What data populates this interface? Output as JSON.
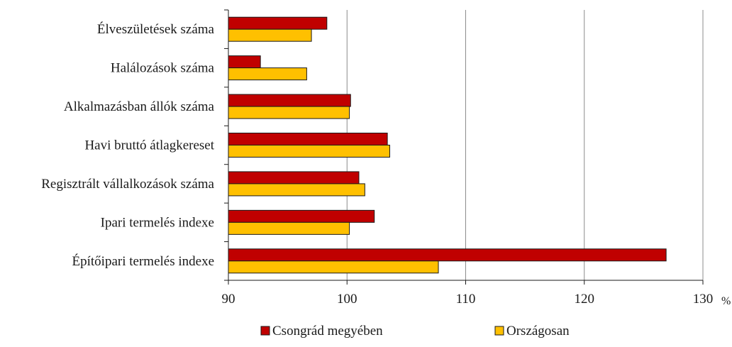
{
  "chart_data": {
    "type": "bar",
    "orientation": "horizontal",
    "categories": [
      "Élveszületések száma",
      "Halálozások száma",
      "Alkalmazásban állók száma",
      "Havi bruttó átlagkereset",
      "Regisztrált vállalkozások száma",
      "Ipari termelés indexe",
      "Építőipari termelés indexe"
    ],
    "series": [
      {
        "name": "Csongrád megyében",
        "color": "#C00000",
        "values": [
          98.3,
          92.7,
          100.3,
          103.4,
          101.0,
          102.3,
          126.9
        ]
      },
      {
        "name": "Országosan",
        "color": "#FFC000",
        "values": [
          97.0,
          96.6,
          100.2,
          103.6,
          101.5,
          100.2,
          107.7
        ]
      }
    ],
    "xlim": [
      90,
      130
    ],
    "xticks": [
      "90",
      "100",
      "110",
      "120",
      "130"
    ],
    "x_unit": "%",
    "grid": "vertical",
    "legend": "bottom"
  }
}
